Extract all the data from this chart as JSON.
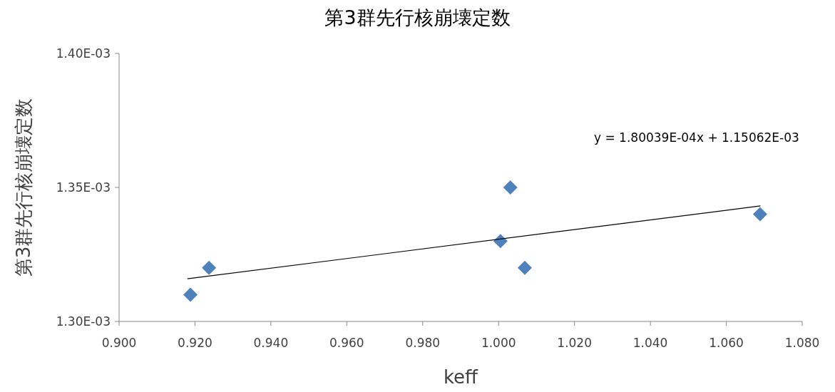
{
  "chart_data": {
    "type": "scatter",
    "title": "第3群先行核崩壊定数",
    "xlabel": "keff",
    "ylabel": "第3群先行核崩壊定数",
    "xlim": [
      0.9,
      1.08
    ],
    "xticks": [
      {
        "value": 0.9,
        "label": "0.900"
      },
      {
        "value": 0.92,
        "label": "0.920"
      },
      {
        "value": 0.94,
        "label": "0.940"
      },
      {
        "value": 0.96,
        "label": "0.960"
      },
      {
        "value": 0.98,
        "label": "0.980"
      },
      {
        "value": 1.0,
        "label": "1.000"
      },
      {
        "value": 1.02,
        "label": "1.020"
      },
      {
        "value": 1.04,
        "label": "1.040"
      },
      {
        "value": 1.06,
        "label": "1.060"
      },
      {
        "value": 1.08,
        "label": "1.080"
      }
    ],
    "ylim": [
      0.0013,
      0.0014
    ],
    "yticks": [
      {
        "value": 0.0013,
        "label": "1.30E-03"
      },
      {
        "value": 0.00135,
        "label": "1.35E-03"
      },
      {
        "value": 0.0014,
        "label": "1.40E-03"
      }
    ],
    "grid": false,
    "series": [
      {
        "type": "scatter",
        "color": "#4f81bd",
        "marker": "diamond",
        "x": [
          0.9188,
          0.9237,
          1.0005,
          1.0031,
          1.0069,
          1.0689
        ],
        "values": [
          0.00131,
          0.00132,
          0.00133,
          0.00135,
          0.00132,
          0.00134
        ]
      },
      {
        "type": "line",
        "color": "#000000",
        "marker": "none",
        "x": [
          0.918,
          1.069
        ],
        "values": [
          0.0013159,
          0.0013431
        ]
      }
    ],
    "annotations": [
      "y = 1.80039E-04x + 1.15062E-03"
    ]
  }
}
